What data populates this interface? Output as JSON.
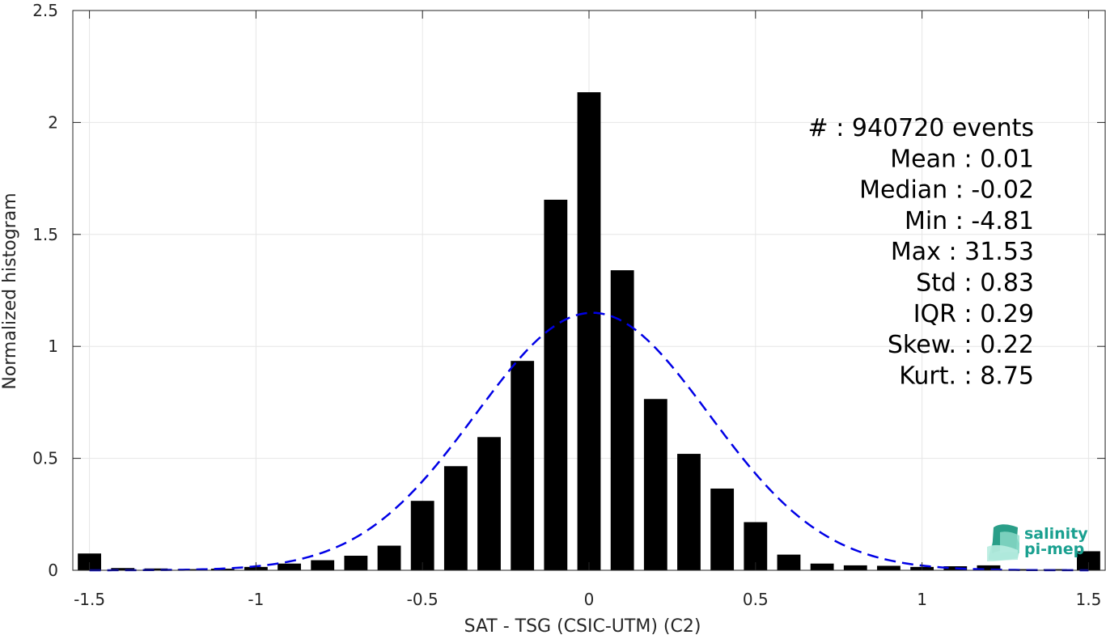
{
  "chart_data": {
    "type": "bar",
    "xlabel": "SAT - TSG (CSIC-UTM) (C2)",
    "ylabel": "Normalized histogram",
    "xlim": [
      -1.55,
      1.55
    ],
    "ylim": [
      0,
      2.5
    ],
    "xticks": [
      -1.5,
      -1,
      -0.5,
      0,
      0.5,
      1,
      1.5
    ],
    "xtick_labels": [
      "-1.5",
      "-1",
      "-0.5",
      "0",
      "0.5",
      "1",
      "1.5"
    ],
    "yticks": [
      0,
      0.5,
      1,
      1.5,
      2,
      2.5
    ],
    "ytick_labels": [
      "0",
      "0.5",
      "1",
      "1.5",
      "2",
      "2.5"
    ],
    "grid": true,
    "bar_color": "#000000",
    "bin_width": 0.1,
    "x": [
      -1.5,
      -1.4,
      -1.3,
      -1.2,
      -1.1,
      -1.0,
      -0.9,
      -0.8,
      -0.7,
      -0.6,
      -0.5,
      -0.4,
      -0.3,
      -0.2,
      -0.1,
      0.0,
      0.1,
      0.2,
      0.3,
      0.4,
      0.5,
      0.6,
      0.7,
      0.8,
      0.9,
      1.0,
      1.1,
      1.2,
      1.3,
      1.4,
      1.5
    ],
    "values": [
      0.075,
      0.01,
      0.008,
      0.005,
      0.007,
      0.015,
      0.03,
      0.045,
      0.065,
      0.11,
      0.31,
      0.465,
      0.595,
      0.935,
      1.655,
      2.135,
      1.34,
      0.765,
      0.52,
      0.365,
      0.215,
      0.07,
      0.03,
      0.022,
      0.02,
      0.015,
      0.018,
      0.022,
      0.005,
      0.005,
      0.085
    ],
    "fit": {
      "type": "gaussian",
      "mean": 0.01,
      "std": 0.35,
      "peak": 1.15,
      "color": "#0000e6",
      "style": "dashed"
    }
  },
  "stats": [
    {
      "label": "#  ",
      "value": ": 940720 events"
    },
    {
      "label": "Mean ",
      "value": ": 0.01"
    },
    {
      "label": "Median ",
      "value": ": -0.02"
    },
    {
      "label": "Min ",
      "value": ": -4.81"
    },
    {
      "label": "Max ",
      "value": ": 31.53"
    },
    {
      "label": "Std ",
      "value": ": 0.83"
    },
    {
      "label": "IQR ",
      "value": ": 0.29"
    },
    {
      "label": "Skew. ",
      "value": ": 0.22"
    },
    {
      "label": "Kurt. ",
      "value": ": 8.75"
    }
  ],
  "logo": {
    "line1": "salinity",
    "line2": "pi-mep",
    "color": "#1aa090"
  }
}
